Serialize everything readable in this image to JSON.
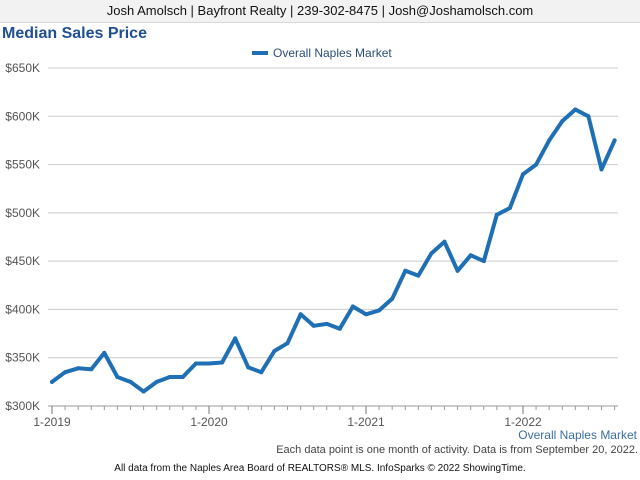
{
  "header": {
    "contact": "Josh Amolsch | Bayfront Realty | 239-302-8475 | Josh@Joshamolsch.com"
  },
  "chart_data": {
    "type": "line",
    "title": "Median Sales Price",
    "legend": {
      "entries": [
        "Overall Naples Market"
      ],
      "placement": "top-center"
    },
    "series_label": "Overall Naples Market",
    "x_tick_labels": [
      "1-2019",
      "1-2020",
      "1-2021",
      "1-2022"
    ],
    "y_tick_labels": [
      "$300K",
      "$350K",
      "$400K",
      "$450K",
      "$500K",
      "$550K",
      "$600K",
      "$650K"
    ],
    "y_ticks": [
      300000,
      350000,
      400000,
      450000,
      500000,
      550000,
      600000,
      650000
    ],
    "ylim": [
      300000,
      650000
    ],
    "grid": true,
    "series": [
      {
        "name": "Overall Naples Market",
        "color": "#1f6fb5",
        "x": [
          "2019-01",
          "2019-02",
          "2019-03",
          "2019-04",
          "2019-05",
          "2019-06",
          "2019-07",
          "2019-08",
          "2019-09",
          "2019-10",
          "2019-11",
          "2019-12",
          "2020-01",
          "2020-02",
          "2020-03",
          "2020-04",
          "2020-05",
          "2020-06",
          "2020-07",
          "2020-08",
          "2020-09",
          "2020-10",
          "2020-11",
          "2020-12",
          "2021-01",
          "2021-02",
          "2021-03",
          "2021-04",
          "2021-05",
          "2021-06",
          "2021-07",
          "2021-08",
          "2021-09",
          "2021-10",
          "2021-11",
          "2021-12",
          "2022-01",
          "2022-02",
          "2022-03",
          "2022-04",
          "2022-05",
          "2022-06",
          "2022-07",
          "2022-08"
        ],
        "values": [
          325000,
          335000,
          339000,
          338000,
          355000,
          330000,
          325000,
          315000,
          325000,
          330000,
          330000,
          344000,
          344000,
          345000,
          370000,
          340000,
          335000,
          357000,
          365000,
          395000,
          383000,
          385000,
          380000,
          403000,
          395000,
          399000,
          411000,
          440000,
          435000,
          458000,
          470000,
          440000,
          456000,
          450000,
          498000,
          505000,
          540000,
          550000,
          575000,
          595000,
          607000,
          600000,
          545000,
          575000
        ]
      }
    ]
  },
  "footer": {
    "series_name": "Overall Naples Market",
    "note": "Each data point is one month of activity. Data is from September 20, 2022.",
    "source": "All data from the Naples Area Board of REALTORS® MLS. InfoSparks © 2022 ShowingTime."
  }
}
